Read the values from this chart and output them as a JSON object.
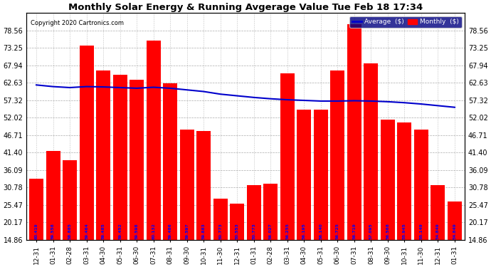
{
  "title": "Monthly Solar Energy & Running Avgerage Value Tue Feb 18 17:34",
  "copyright": "Copyright 2020 Cartronics.com",
  "categories": [
    "12-31",
    "01-31",
    "02-28",
    "03-31",
    "04-30",
    "05-31",
    "06-30",
    "07-31",
    "08-31",
    "09-30",
    "10-31",
    "11-30",
    "12-31",
    "01-31",
    "02-28",
    "03-31",
    "04-30",
    "05-31",
    "06-30",
    "07-31",
    "08-31",
    "09-30",
    "10-31",
    "11-30",
    "12-31",
    "01-31"
  ],
  "bar_values": [
    33.5,
    42.0,
    39.0,
    74.0,
    66.5,
    65.0,
    63.5,
    75.5,
    62.5,
    48.5,
    48.0,
    27.5,
    26.0,
    31.5,
    32.0,
    65.5,
    54.5,
    54.5,
    66.5,
    80.5,
    68.5,
    51.5,
    50.5,
    48.5,
    31.5,
    26.5
  ],
  "avg_values": [
    62.0,
    61.5,
    61.2,
    61.5,
    61.4,
    61.2,
    61.0,
    61.3,
    61.0,
    60.5,
    60.0,
    59.2,
    58.7,
    58.2,
    57.8,
    57.5,
    57.3,
    57.1,
    57.1,
    57.2,
    57.1,
    56.9,
    56.6,
    56.2,
    55.7,
    55.2
  ],
  "bar_labels": [
    "60.419",
    "59.558",
    "58.885",
    "59.464",
    "59.485",
    "59.452",
    "59.598",
    "60.132",
    "59.486",
    "59.597",
    "59.883",
    "50.773",
    "50.553",
    "50.773",
    "56.027",
    "56.255",
    "56.195",
    "56.140",
    "56.725",
    "56.719",
    "57.095",
    "56.568",
    "55.945",
    "55.149",
    "54.849",
    "54.849"
  ],
  "ylim": [
    14.86,
    83.87
  ],
  "yticks": [
    14.86,
    20.17,
    25.47,
    30.78,
    36.09,
    41.4,
    46.71,
    52.02,
    57.32,
    62.63,
    67.94,
    73.25,
    78.56
  ],
  "bar_color": "#ff0000",
  "avg_line_color": "#0000cc",
  "label_color": "#0000ff",
  "title_color": "#000000",
  "bg_color": "#ffffff",
  "plot_bg_color": "#ffffff",
  "grid_color": "#888888",
  "legend_avg_color": "#0000cc",
  "legend_monthly_color": "#ff0000"
}
